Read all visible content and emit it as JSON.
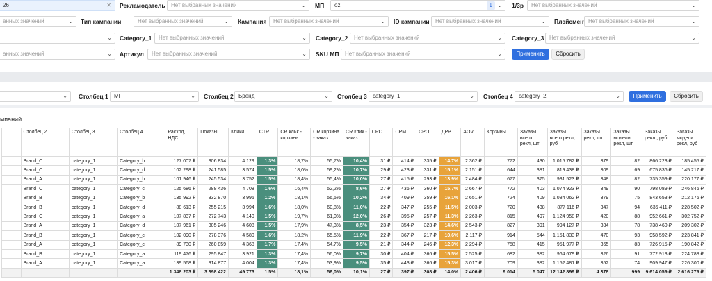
{
  "filters": {
    "row1": {
      "partial_value": "26",
      "advertiser_label": "Рекламодатель",
      "advertiser_ph": "Нет выбранных значений",
      "mp_label": "МП",
      "mp_value": "oz",
      "mp_count": "1",
      "onethree_label": "1/3р",
      "onethree_ph": "Нет выбранных значений"
    },
    "row2": {
      "partial_ph": "анных значений",
      "type_label": "Тип кампании",
      "type_ph": "Нет выбранных значений",
      "campaign_label": "Кампания",
      "campaign_ph": "Нет выбранных значений",
      "cid_label": "ID кампании",
      "cid_ph": "Нет выбранных значений",
      "placement_label": "Плэйсмент",
      "placement_ph": "Нет выбранных значений"
    },
    "row3": {
      "cat1_label": "Category_1",
      "cat1_ph": "Нет выбранных значений",
      "cat2_label": "Category_2",
      "cat2_ph": "Нет выбранных значений",
      "cat3_label": "Category_3",
      "cat3_ph": "Нет выбранных значений"
    },
    "row4": {
      "partial_ph": "анных значений",
      "article_label": "Артикул",
      "article_ph": "Нет выбранных значений",
      "sku_label": "SKU МП",
      "sku_ph": "Нет выбранных значений",
      "apply": "Применить",
      "reset": "Сбросить"
    }
  },
  "columns_bar": {
    "c1_label": "Столбец 1",
    "c1_value": "МП",
    "c2_label": "Столбец 2",
    "c2_value": "Бренд",
    "c3_label": "Столбец 3",
    "c3_value": "category_1",
    "c4_label": "Столбец 4",
    "c4_value": "category_2",
    "apply": "Применить",
    "reset": "Сбросить"
  },
  "section_title": "мпаний",
  "table": {
    "headers": [
      "Столбец 2",
      "Столбец 3",
      "Столбец 4",
      "Расход, НДС",
      "Показы",
      "Клики",
      "CTR",
      "CR клик - корзина",
      "CR корзина - заказ",
      "CR клик - заказ",
      "CPC",
      "CPM",
      "CPO",
      "ДРР",
      "AOV",
      "Корзины",
      "Заказы всего рекл, шт",
      "Заказы всего рекл, руб",
      "Заказы рекл, шт",
      "Заказы модели рекл, шт",
      "Заказы рекл , руб",
      "Заказы модели рекл, руб"
    ],
    "rows": [
      [
        "Brand_C",
        "category_1",
        "Category_b",
        "127 007 ₽",
        "306 834",
        "4 129",
        "1,3%",
        "18,7%",
        "55,7%",
        "10,4%",
        "31 ₽",
        "414 ₽",
        "335 ₽",
        "14,7%",
        "2 362 ₽",
        "772",
        "430",
        "1 015 782 ₽",
        "379",
        "82",
        "866 223 ₽",
        "185 455 ₽"
      ],
      [
        "Brand_C",
        "category_1",
        "Category_d",
        "102 298 ₽",
        "241 585",
        "3 574",
        "1,5%",
        "18,0%",
        "59,2%",
        "10,7%",
        "29 ₽",
        "423 ₽",
        "331 ₽",
        "15,1%",
        "2 151 ₽",
        "644",
        "381",
        "819 438 ₽",
        "309",
        "69",
        "675 836 ₽",
        "145 217 ₽"
      ],
      [
        "Brand_A",
        "category_1",
        "Category_b",
        "101 946 ₽",
        "245 534",
        "3 752",
        "1,5%",
        "18,4%",
        "55,4%",
        "10,0%",
        "27 ₽",
        "415 ₽",
        "293 ₽",
        "13,9%",
        "2 484 ₽",
        "677",
        "375",
        "931 523 ₽",
        "348",
        "82",
        "735 359 ₽",
        "220 177 ₽"
      ],
      [
        "Brand_C",
        "category_1",
        "Category_c",
        "125 686 ₽",
        "288 436",
        "4 708",
        "1,6%",
        "16,4%",
        "52,2%",
        "8,6%",
        "27 ₽",
        "436 ₽",
        "360 ₽",
        "15,7%",
        "2 667 ₽",
        "772",
        "403",
        "1 074 923 ₽",
        "349",
        "90",
        "798 089 ₽",
        "246 846 ₽"
      ],
      [
        "Brand_B",
        "category_1",
        "Category_b",
        "135 992 ₽",
        "332 870",
        "3 995",
        "1,2%",
        "18,1%",
        "56,5%",
        "10,2%",
        "34 ₽",
        "409 ₽",
        "359 ₽",
        "16,1%",
        "2 651 ₽",
        "724",
        "409",
        "1 084 062 ₽",
        "379",
        "75",
        "843 653 ₽",
        "212 176 ₽"
      ],
      [
        "Brand_B",
        "category_1",
        "Category_d",
        "88 613 ₽",
        "255 215",
        "3 994",
        "1,6%",
        "18,0%",
        "60,8%",
        "11,0%",
        "22 ₽",
        "347 ₽",
        "255 ₽",
        "11,5%",
        "2 003 ₽",
        "720",
        "438",
        "877 116 ₽",
        "347",
        "94",
        "635 411 ₽",
        "228 502 ₽"
      ],
      [
        "Brand_C",
        "category_1",
        "Category_a",
        "107 837 ₽",
        "272 743",
        "4 140",
        "1,5%",
        "19,7%",
        "61,0%",
        "12,0%",
        "26 ₽",
        "395 ₽",
        "257 ₽",
        "11,3%",
        "2 263 ₽",
        "815",
        "497",
        "1 124 958 ₽",
        "420",
        "88",
        "952 661 ₽",
        "302 752 ₽"
      ],
      [
        "Brand_A",
        "category_1",
        "Category_d",
        "107 961 ₽",
        "305 246",
        "4 608",
        "1,5%",
        "17,9%",
        "47,3%",
        "8,5%",
        "23 ₽",
        "354 ₽",
        "323 ₽",
        "14,6%",
        "2 543 ₽",
        "827",
        "391",
        "994 127 ₽",
        "334",
        "78",
        "738 460 ₽",
        "209 302 ₽"
      ],
      [
        "Brand_B",
        "category_1",
        "Category_c",
        "102 090 ₽",
        "278 376",
        "4 580",
        "1,6%",
        "18,2%",
        "65,5%",
        "11,9%",
        "22 ₽",
        "367 ₽",
        "217 ₽",
        "10,6%",
        "2 117 ₽",
        "914",
        "544",
        "1 151 833 ₽",
        "470",
        "93",
        "958 592 ₽",
        "223 841 ₽"
      ],
      [
        "Brand_A",
        "category_1",
        "Category_c",
        "89 730 ₽",
        "260 859",
        "4 368",
        "1,7%",
        "17,4%",
        "54,7%",
        "9,5%",
        "21 ₽",
        "344 ₽",
        "246 ₽",
        "12,3%",
        "2 294 ₽",
        "758",
        "415",
        "951 977 ₽",
        "365",
        "83",
        "726 915 ₽",
        "190 842 ₽"
      ],
      [
        "Brand_B",
        "category_1",
        "Category_a",
        "119 476 ₽",
        "295 847",
        "3 921",
        "1,3%",
        "17,4%",
        "56,0%",
        "9,7%",
        "30 ₽",
        "404 ₽",
        "366 ₽",
        "15,5%",
        "2 525 ₽",
        "682",
        "382",
        "964 679 ₽",
        "326",
        "91",
        "772 913 ₽",
        "224 788 ₽"
      ],
      [
        "Brand_A",
        "category_1",
        "Category_a",
        "139 568 ₽",
        "314 877",
        "4 004",
        "1,3%",
        "17,4%",
        "53,9%",
        "9,5%",
        "35 ₽",
        "443 ₽",
        "366 ₽",
        "15,3%",
        "3 017 ₽",
        "709",
        "382",
        "1 152 481 ₽",
        "352",
        "74",
        "909 947 ₽",
        "226 300 ₽"
      ]
    ],
    "total": [
      "",
      "",
      "",
      "1 348 203 ₽",
      "3 398 422",
      "49 773",
      "1,5%",
      "18,1%",
      "56,0%",
      "10,1%",
      "27 ₽",
      "397 ₽",
      "308 ₽",
      "14,0%",
      "2 406 ₽",
      "9 014",
      "5 047",
      "12 142 899 ₽",
      "4 378",
      "999",
      "9 614 059 ₽",
      "2 616 279 ₽"
    ]
  }
}
